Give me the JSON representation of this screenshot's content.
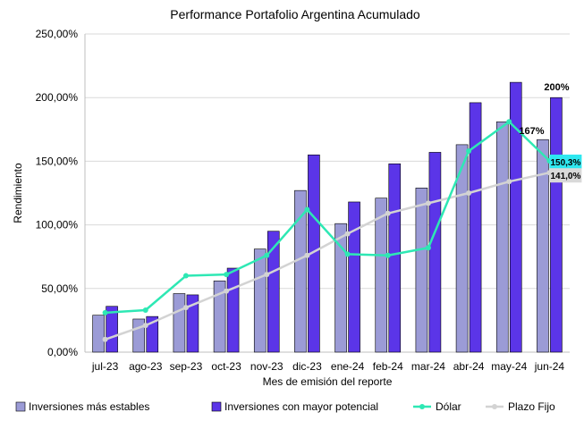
{
  "chart_data": {
    "type": "bar",
    "title": "Performance Portafolio Argentina Acumulado",
    "xlabel": "Mes de emisión del reporte",
    "ylabel": "Rendimiento",
    "ylim": [
      0,
      250
    ],
    "yticks": [
      0,
      50,
      100,
      150,
      200,
      250
    ],
    "ytick_labels": [
      "0,00%",
      "50,00%",
      "100,00%",
      "150,00%",
      "200,00%",
      "250,00%"
    ],
    "grid": "horizontal",
    "legend_position": "bottom",
    "categories": [
      "jul-23",
      "ago-23",
      "sep-23",
      "oct-23",
      "nov-23",
      "dic-23",
      "ene-24",
      "feb-24",
      "mar-24",
      "abr-24",
      "may-24",
      "jun-24"
    ],
    "series": [
      {
        "name": "Inversiones más estables",
        "kind": "bar",
        "color": "#9b9bd6",
        "values": [
          29,
          26,
          46,
          56,
          81,
          127,
          101,
          121,
          129,
          163,
          181,
          167
        ]
      },
      {
        "name": "Inversiones con mayor potencial",
        "kind": "bar",
        "color": "#5b35e8",
        "values": [
          36,
          28,
          45,
          66,
          95,
          155,
          118,
          148,
          157,
          196,
          212,
          200
        ]
      },
      {
        "name": "Dólar",
        "kind": "line",
        "color": "#2ee8b4",
        "values": [
          31,
          33,
          60,
          61,
          76,
          112,
          77,
          76,
          82,
          158,
          181,
          150.3
        ]
      },
      {
        "name": "Plazo Fijo",
        "kind": "line",
        "color": "#d3d3d3",
        "values": [
          10,
          21,
          35,
          48,
          61,
          76,
          93,
          109,
          117,
          125,
          134,
          141
        ]
      }
    ],
    "annotations": [
      {
        "text": "200%",
        "series": 1,
        "index": 11
      },
      {
        "text": "167%",
        "series": 0,
        "index": 11
      },
      {
        "text": "150,3%",
        "series": 2,
        "index": 11,
        "bg": "#2ee8f0"
      },
      {
        "text": "141,0%",
        "series": 3,
        "index": 11,
        "bg": "#d9d9d9"
      }
    ]
  }
}
